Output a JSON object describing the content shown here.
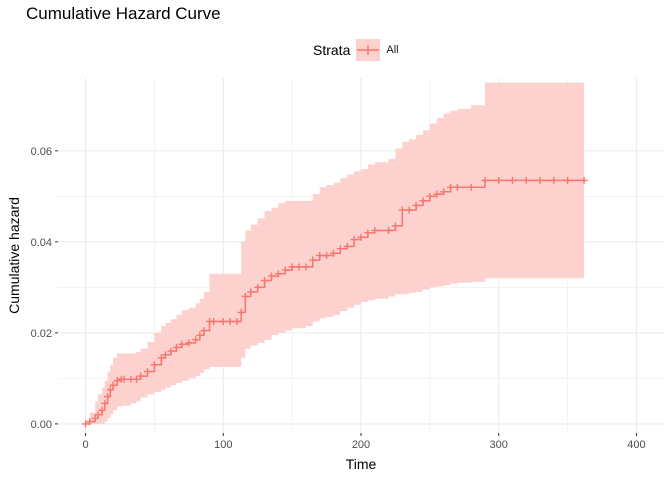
{
  "chart_data": {
    "type": "line",
    "title": "Cumulative Hazard Curve",
    "xlabel": "Time",
    "ylabel": "Cumulative hazard",
    "xlim": [
      -20,
      420
    ],
    "ylim": [
      -0.002,
      0.076
    ],
    "x_ticks": [
      0,
      100,
      200,
      300,
      400
    ],
    "x_tick_labels": [
      "0",
      "100",
      "200",
      "300",
      "400"
    ],
    "y_ticks": [
      0.0,
      0.02,
      0.04,
      0.06
    ],
    "y_tick_labels": [
      "0.00",
      "0.02",
      "0.04",
      "0.06"
    ],
    "grid": true,
    "legend": {
      "title": "Strata",
      "position": "top",
      "entries": [
        "All"
      ]
    },
    "colors": {
      "line": "#F8766D",
      "ribbon": "#FCD1CE",
      "grid": "#EBEBEB"
    },
    "series": [
      {
        "name": "All",
        "x": [
          0,
          3,
          7,
          9,
          12,
          14,
          16,
          18,
          20,
          23,
          26,
          28,
          33,
          37,
          40,
          45,
          50,
          55,
          58,
          62,
          66,
          70,
          75,
          80,
          83,
          86,
          90,
          93,
          100,
          105,
          110,
          113,
          116,
          120,
          125,
          130,
          135,
          140,
          145,
          150,
          155,
          160,
          165,
          170,
          175,
          180,
          185,
          190,
          195,
          200,
          205,
          210,
          220,
          225,
          230,
          235,
          240,
          245,
          250,
          255,
          260,
          265,
          270,
          280,
          290,
          300,
          310,
          320,
          330,
          340,
          350,
          362
        ],
        "y": [
          0.0,
          0.0005,
          0.0012,
          0.002,
          0.003,
          0.0045,
          0.006,
          0.0075,
          0.0085,
          0.0095,
          0.0098,
          0.0098,
          0.0098,
          0.0098,
          0.0105,
          0.0115,
          0.013,
          0.0145,
          0.0152,
          0.016,
          0.0168,
          0.0175,
          0.0178,
          0.0185,
          0.0195,
          0.0205,
          0.0225,
          0.0225,
          0.0225,
          0.0225,
          0.0225,
          0.0245,
          0.028,
          0.029,
          0.03,
          0.0315,
          0.0325,
          0.033,
          0.0338,
          0.0345,
          0.0345,
          0.0345,
          0.036,
          0.037,
          0.037,
          0.0375,
          0.0385,
          0.039,
          0.0405,
          0.041,
          0.042,
          0.0425,
          0.0425,
          0.0435,
          0.047,
          0.047,
          0.048,
          0.049,
          0.05,
          0.0505,
          0.051,
          0.052,
          0.052,
          0.052,
          0.0535,
          0.0535,
          0.0535,
          0.0535,
          0.0535,
          0.0535,
          0.0535,
          0.0535
        ],
        "lower": [
          0.0,
          0.0,
          0.0,
          0.0,
          0.0,
          0.0005,
          0.0012,
          0.0022,
          0.003,
          0.0038,
          0.004,
          0.004,
          0.0045,
          0.005,
          0.0058,
          0.0065,
          0.007,
          0.0075,
          0.008,
          0.0085,
          0.009,
          0.0095,
          0.01,
          0.0105,
          0.0112,
          0.012,
          0.0125,
          0.0125,
          0.0125,
          0.0125,
          0.0125,
          0.0145,
          0.0165,
          0.0172,
          0.0178,
          0.0185,
          0.0195,
          0.02,
          0.0205,
          0.021,
          0.021,
          0.0215,
          0.0225,
          0.0232,
          0.0235,
          0.024,
          0.0248,
          0.0255,
          0.0262,
          0.0268,
          0.0272,
          0.0275,
          0.028,
          0.0285,
          0.0285,
          0.0288,
          0.029,
          0.0295,
          0.03,
          0.0302,
          0.0305,
          0.0308,
          0.031,
          0.0312,
          0.032,
          0.032,
          0.032,
          0.032,
          0.032,
          0.032,
          0.032,
          0.032
        ],
        "upper": [
          0.0,
          0.0025,
          0.005,
          0.0065,
          0.008,
          0.0095,
          0.0115,
          0.013,
          0.0145,
          0.0155,
          0.0155,
          0.0155,
          0.0155,
          0.0158,
          0.0165,
          0.018,
          0.02,
          0.0215,
          0.0222,
          0.023,
          0.024,
          0.025,
          0.0255,
          0.0265,
          0.0275,
          0.029,
          0.033,
          0.033,
          0.033,
          0.033,
          0.033,
          0.04,
          0.0425,
          0.0438,
          0.0452,
          0.0468,
          0.0475,
          0.0485,
          0.049,
          0.049,
          0.049,
          0.049,
          0.0505,
          0.052,
          0.0525,
          0.053,
          0.054,
          0.0548,
          0.0555,
          0.056,
          0.057,
          0.0575,
          0.0582,
          0.0605,
          0.062,
          0.0625,
          0.0635,
          0.0645,
          0.066,
          0.0672,
          0.0682,
          0.0688,
          0.0692,
          0.07,
          0.075,
          0.075,
          0.075,
          0.075,
          0.075,
          0.075,
          0.075,
          0.075
        ]
      }
    ]
  }
}
